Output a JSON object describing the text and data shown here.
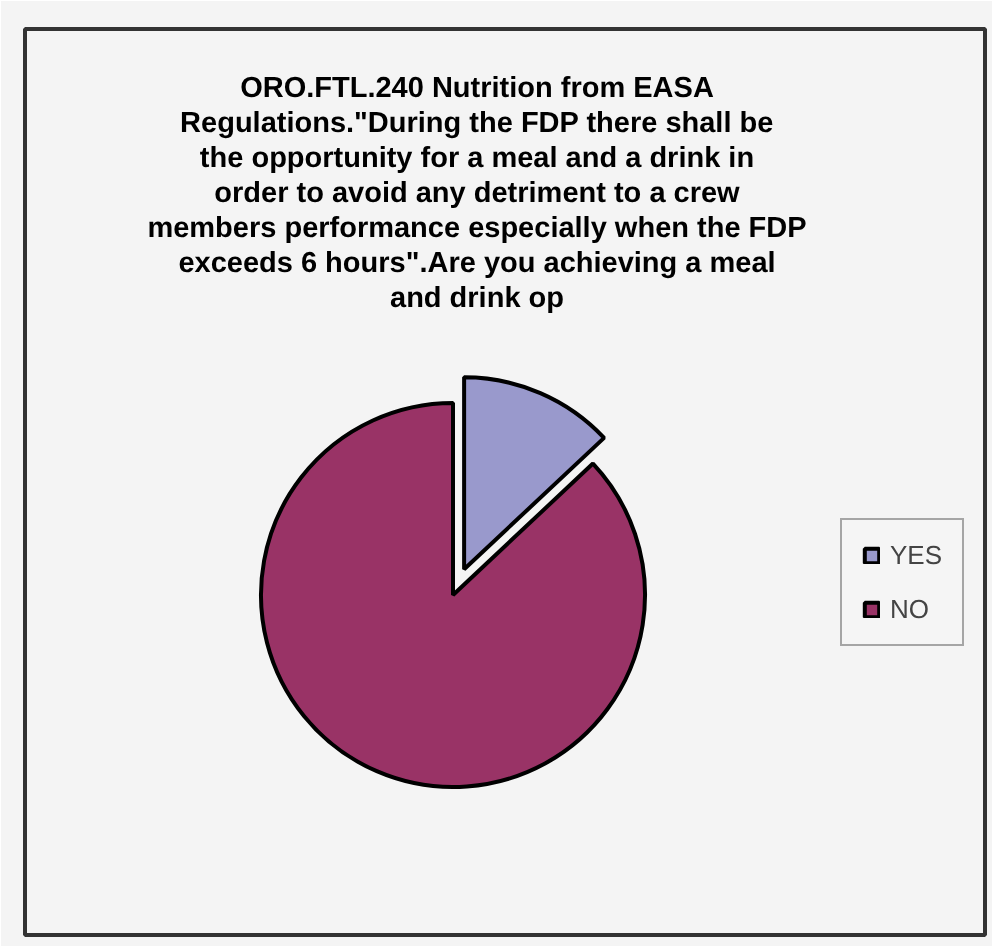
{
  "chart_data": {
    "type": "pie",
    "title": "ORO.FTL.240 Nutrition from EASA Regulations.\"During the FDP there shall be the opportunity for a meal and a drink in order to avoid any detriment to a crew members performance especially when the FDP exceeds 6 hours\".Are you achieving a meal and drink op",
    "categories": [
      "YES",
      "NO"
    ],
    "values": [
      13,
      87
    ],
    "colors": [
      "#9999cc",
      "#993366"
    ],
    "legend": "right"
  }
}
